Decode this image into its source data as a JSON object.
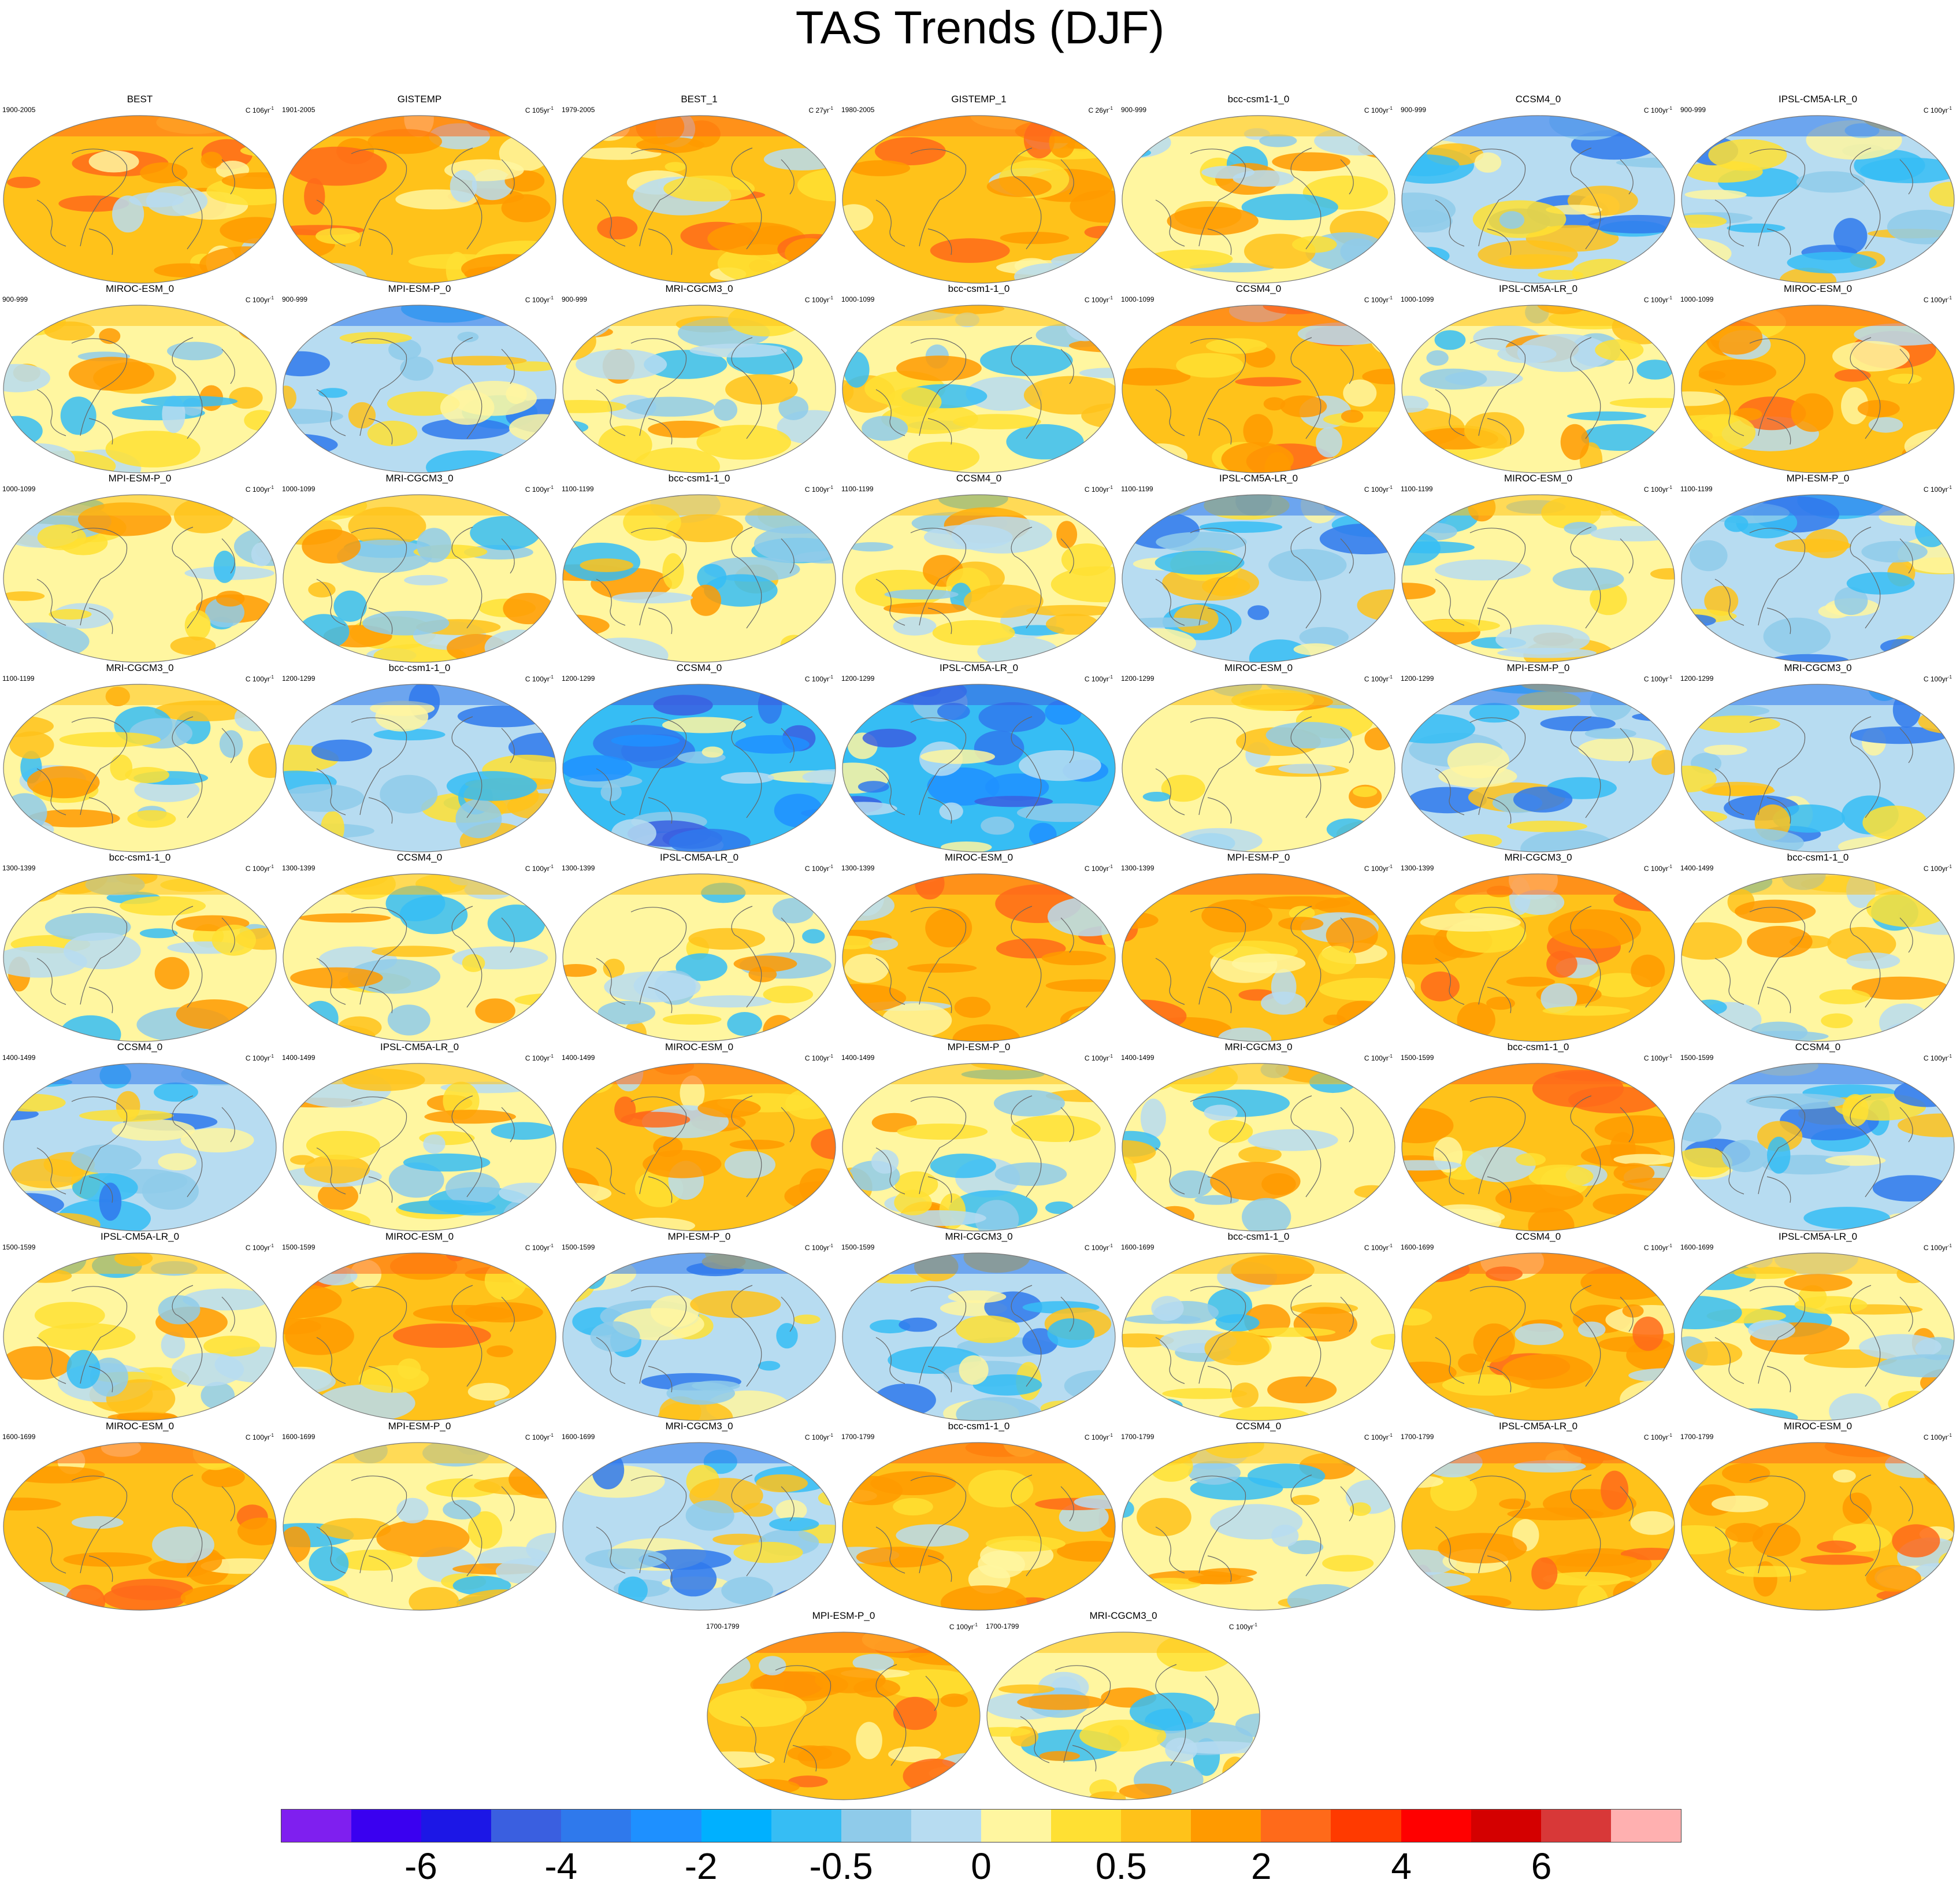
{
  "title": "TAS Trends (DJF)",
  "colorbar": {
    "colors": [
      "#7f1fef",
      "#3a00f0",
      "#1c17e6",
      "#3a5fe0",
      "#2f79ec",
      "#1e90ff",
      "#00b0ff",
      "#36bdf4",
      "#8fcbea",
      "#b7dcf1",
      "#fff6a0",
      "#ffe033",
      "#ffc21a",
      "#ff9a00",
      "#ff6a1a",
      "#ff3a00",
      "#ff0000",
      "#d40000",
      "#d83838",
      "#ffb0b0"
    ],
    "labels": [
      {
        "text": "-6",
        "at_boundary": 2
      },
      {
        "text": "-4",
        "at_boundary": 4
      },
      {
        "text": "-2",
        "at_boundary": 6
      },
      {
        "text": "-0.5",
        "at_boundary": 8
      },
      {
        "text": "0",
        "at_boundary": 10
      },
      {
        "text": "0.5",
        "at_boundary": 12
      },
      {
        "text": "2",
        "at_boundary": 14
      },
      {
        "text": "4",
        "at_boundary": 16
      },
      {
        "text": "6",
        "at_boundary": 18
      }
    ]
  },
  "panels": [
    {
      "title": "BEST",
      "period": "1900-2005",
      "unit": "C 106yr",
      "tone": "warm"
    },
    {
      "title": "GISTEMP",
      "period": "1901-2005",
      "unit": "C 105yr",
      "tone": "warm"
    },
    {
      "title": "BEST_1",
      "period": "1979-2005",
      "unit": "C 27yr",
      "tone": "warm"
    },
    {
      "title": "GISTEMP_1",
      "period": "1980-2005",
      "unit": "C 26yr",
      "tone": "warm"
    },
    {
      "title": "bcc-csm1-1_0",
      "period": "900-999",
      "unit": "C 100yr",
      "tone": "mixed"
    },
    {
      "title": "CCSM4_0",
      "period": "900-999",
      "unit": "C 100yr",
      "tone": "cool"
    },
    {
      "title": "IPSL-CM5A-LR_0",
      "period": "900-999",
      "unit": "C 100yr",
      "tone": "cool"
    },
    {
      "title": "MIROC-ESM_0",
      "period": "900-999",
      "unit": "C 100yr",
      "tone": "mixed"
    },
    {
      "title": "MPI-ESM-P_0",
      "period": "900-999",
      "unit": "C 100yr",
      "tone": "cool"
    },
    {
      "title": "MRI-CGCM3_0",
      "period": "900-999",
      "unit": "C 100yr",
      "tone": "mixed"
    },
    {
      "title": "bcc-csm1-1_0",
      "period": "1000-1099",
      "unit": "C 100yr",
      "tone": "mixed"
    },
    {
      "title": "CCSM4_0",
      "period": "1000-1099",
      "unit": "C 100yr",
      "tone": "warm"
    },
    {
      "title": "IPSL-CM5A-LR_0",
      "period": "1000-1099",
      "unit": "C 100yr",
      "tone": "mixed"
    },
    {
      "title": "MIROC-ESM_0",
      "period": "1000-1099",
      "unit": "C 100yr",
      "tone": "warm"
    },
    {
      "title": "MPI-ESM-P_0",
      "period": "1000-1099",
      "unit": "C 100yr",
      "tone": "mixed"
    },
    {
      "title": "MRI-CGCM3_0",
      "period": "1000-1099",
      "unit": "C 100yr",
      "tone": "mixed"
    },
    {
      "title": "bcc-csm1-1_0",
      "period": "1100-1199",
      "unit": "C 100yr",
      "tone": "mixed"
    },
    {
      "title": "CCSM4_0",
      "period": "1100-1199",
      "unit": "C 100yr",
      "tone": "mixed"
    },
    {
      "title": "IPSL-CM5A-LR_0",
      "period": "1100-1199",
      "unit": "C 100yr",
      "tone": "cool"
    },
    {
      "title": "MIROC-ESM_0",
      "period": "1100-1199",
      "unit": "C 100yr",
      "tone": "mixed"
    },
    {
      "title": "MPI-ESM-P_0",
      "period": "1100-1199",
      "unit": "C 100yr",
      "tone": "cool"
    },
    {
      "title": "MRI-CGCM3_0",
      "period": "1100-1199",
      "unit": "C 100yr",
      "tone": "mixed"
    },
    {
      "title": "bcc-csm1-1_0",
      "period": "1200-1299",
      "unit": "C 100yr",
      "tone": "cool"
    },
    {
      "title": "CCSM4_0",
      "period": "1200-1299",
      "unit": "C 100yr",
      "tone": "cold"
    },
    {
      "title": "IPSL-CM5A-LR_0",
      "period": "1200-1299",
      "unit": "C 100yr",
      "tone": "cold"
    },
    {
      "title": "MIROC-ESM_0",
      "period": "1200-1299",
      "unit": "C 100yr",
      "tone": "mixed"
    },
    {
      "title": "MPI-ESM-P_0",
      "period": "1200-1299",
      "unit": "C 100yr",
      "tone": "cool"
    },
    {
      "title": "MRI-CGCM3_0",
      "period": "1200-1299",
      "unit": "C 100yr",
      "tone": "cool"
    },
    {
      "title": "bcc-csm1-1_0",
      "period": "1300-1399",
      "unit": "C 100yr",
      "tone": "mixed"
    },
    {
      "title": "CCSM4_0",
      "period": "1300-1399",
      "unit": "C 100yr",
      "tone": "mixed"
    },
    {
      "title": "IPSL-CM5A-LR_0",
      "period": "1300-1399",
      "unit": "C 100yr",
      "tone": "mixed"
    },
    {
      "title": "MIROC-ESM_0",
      "period": "1300-1399",
      "unit": "C 100yr",
      "tone": "warm"
    },
    {
      "title": "MPI-ESM-P_0",
      "period": "1300-1399",
      "unit": "C 100yr",
      "tone": "warm"
    },
    {
      "title": "MRI-CGCM3_0",
      "period": "1300-1399",
      "unit": "C 100yr",
      "tone": "warm"
    },
    {
      "title": "bcc-csm1-1_0",
      "period": "1400-1499",
      "unit": "C 100yr",
      "tone": "mixed"
    },
    {
      "title": "CCSM4_0",
      "period": "1400-1499",
      "unit": "C 100yr",
      "tone": "cool"
    },
    {
      "title": "IPSL-CM5A-LR_0",
      "period": "1400-1499",
      "unit": "C 100yr",
      "tone": "mixed"
    },
    {
      "title": "MIROC-ESM_0",
      "period": "1400-1499",
      "unit": "C 100yr",
      "tone": "warm"
    },
    {
      "title": "MPI-ESM-P_0",
      "period": "1400-1499",
      "unit": "C 100yr",
      "tone": "mixed"
    },
    {
      "title": "MRI-CGCM3_0",
      "period": "1400-1499",
      "unit": "C 100yr",
      "tone": "mixed"
    },
    {
      "title": "bcc-csm1-1_0",
      "period": "1500-1599",
      "unit": "C 100yr",
      "tone": "warm"
    },
    {
      "title": "CCSM4_0",
      "period": "1500-1599",
      "unit": "C 100yr",
      "tone": "cool"
    },
    {
      "title": "IPSL-CM5A-LR_0",
      "period": "1500-1599",
      "unit": "C 100yr",
      "tone": "mixed"
    },
    {
      "title": "MIROC-ESM_0",
      "period": "1500-1599",
      "unit": "C 100yr",
      "tone": "warm"
    },
    {
      "title": "MPI-ESM-P_0",
      "period": "1500-1599",
      "unit": "C 100yr",
      "tone": "cool"
    },
    {
      "title": "MRI-CGCM3_0",
      "period": "1500-1599",
      "unit": "C 100yr",
      "tone": "cool"
    },
    {
      "title": "bcc-csm1-1_0",
      "period": "1600-1699",
      "unit": "C 100yr",
      "tone": "mixed"
    },
    {
      "title": "CCSM4_0",
      "period": "1600-1699",
      "unit": "C 100yr",
      "tone": "warm"
    },
    {
      "title": "IPSL-CM5A-LR_0",
      "period": "1600-1699",
      "unit": "C 100yr",
      "tone": "mixed"
    },
    {
      "title": "MIROC-ESM_0",
      "period": "1600-1699",
      "unit": "C 100yr",
      "tone": "warm"
    },
    {
      "title": "MPI-ESM-P_0",
      "period": "1600-1699",
      "unit": "C 100yr",
      "tone": "mixed"
    },
    {
      "title": "MRI-CGCM3_0",
      "period": "1600-1699",
      "unit": "C 100yr",
      "tone": "cool"
    },
    {
      "title": "bcc-csm1-1_0",
      "period": "1700-1799",
      "unit": "C 100yr",
      "tone": "warm"
    },
    {
      "title": "CCSM4_0",
      "period": "1700-1799",
      "unit": "C 100yr",
      "tone": "mixed"
    },
    {
      "title": "IPSL-CM5A-LR_0",
      "period": "1700-1799",
      "unit": "C 100yr",
      "tone": "warm"
    },
    {
      "title": "MIROC-ESM_0",
      "period": "1700-1799",
      "unit": "C 100yr",
      "tone": "warm"
    },
    {
      "title": "MPI-ESM-P_0",
      "period": "1700-1799",
      "unit": "C 100yr",
      "tone": "warm"
    },
    {
      "title": "MRI-CGCM3_0",
      "period": "1700-1799",
      "unit": "C 100yr",
      "tone": "mixed"
    }
  ],
  "tone_colors": {
    "warm": {
      "base": "#ffc21a",
      "blobs": [
        "#ff9a00",
        "#ff9a00",
        "#fff6a0",
        "#ff6a1a",
        "#ffe033",
        "#b7dcf1"
      ]
    },
    "mixed": {
      "base": "#fff6a0",
      "blobs": [
        "#b7dcf1",
        "#ffe033",
        "#36bdf4",
        "#ffc21a",
        "#8fcbea",
        "#ff9a00"
      ]
    },
    "cool": {
      "base": "#b7dcf1",
      "blobs": [
        "#8fcbea",
        "#36bdf4",
        "#fff6a0",
        "#2f79ec",
        "#ffe033",
        "#ffc21a"
      ]
    },
    "cold": {
      "base": "#36bdf4",
      "blobs": [
        "#2f79ec",
        "#1e90ff",
        "#8fcbea",
        "#3a5fe0",
        "#b7dcf1",
        "#fff6a0"
      ]
    }
  }
}
